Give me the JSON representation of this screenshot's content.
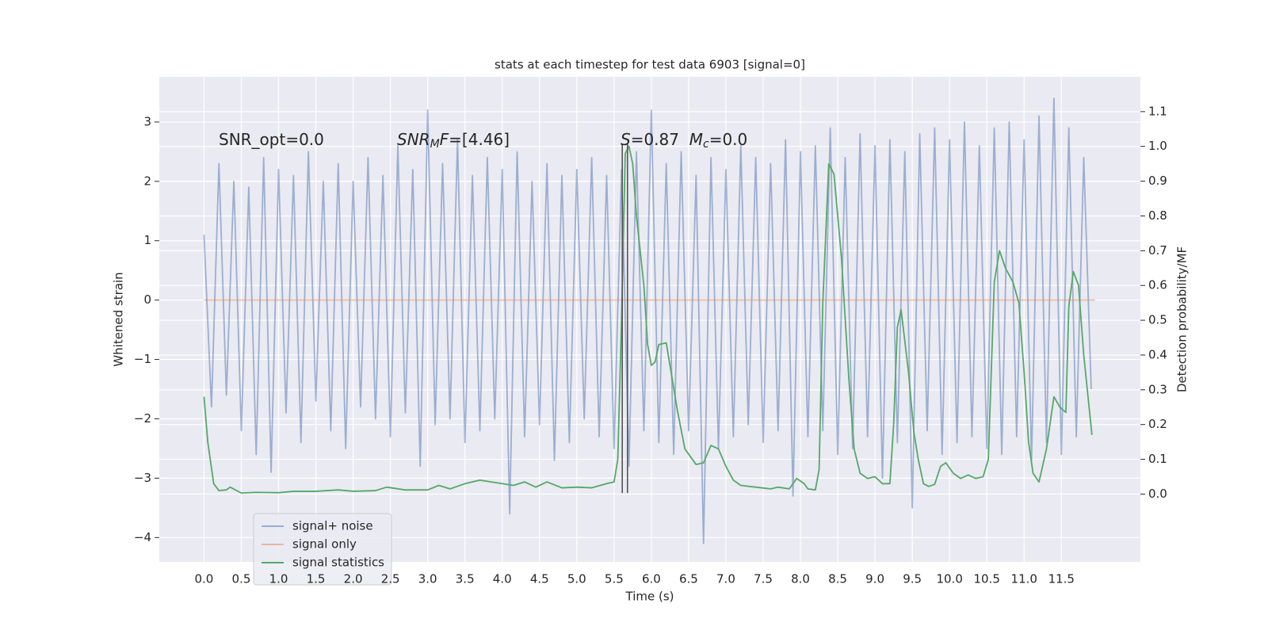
{
  "chart_data": {
    "type": "line",
    "title": "stats at each timestep for test data 6903 [signal=0]",
    "xlabel": "Time (s)",
    "ylabel": "Whitened strain",
    "y2label": "Detection probability/MF",
    "annotations": [
      [
        "SNR_opt=0.0"
      ],
      [
        "SNR",
        "M",
        "F",
        "=[4.46]"
      ],
      [
        "S",
        "=0.87  ",
        "M",
        "c",
        "=0.0"
      ]
    ],
    "xlim": [
      -0.6,
      12.56
    ],
    "ylim": [
      -4.41,
      3.76
    ],
    "y2lim": [
      -0.195,
      1.2
    ],
    "xticks": [
      {
        "value": 0,
        "label": "0.0"
      },
      0.5,
      {
        "value": 1,
        "label": "1.0"
      },
      1.5,
      {
        "value": 2,
        "label": "2.0"
      },
      2.5,
      {
        "value": 3,
        "label": "3.0"
      },
      3.5,
      {
        "value": 4,
        "label": "4.0"
      },
      4.5,
      {
        "value": 5,
        "label": "5.0"
      },
      5.5,
      {
        "value": 6,
        "label": "6.0"
      },
      6.5,
      {
        "value": 7,
        "label": "7.0"
      },
      7.5,
      {
        "value": 8,
        "label": "8.0"
      },
      8.5,
      {
        "value": 9,
        "label": "9.0"
      },
      9.5,
      {
        "value": 10,
        "label": "10.0"
      },
      10.5,
      {
        "value": 11,
        "label": "11.0"
      },
      11.5
    ],
    "yticks": [
      {
        "value": -4,
        "label": "−4"
      },
      {
        "value": -3,
        "label": "−3"
      },
      {
        "value": -2,
        "label": "−2"
      },
      {
        "value": -1,
        "label": "−1"
      },
      0,
      1,
      2,
      3
    ],
    "y2ticks": [
      {
        "value": 0,
        "label": "0.0"
      },
      0.1,
      0.2,
      0.3,
      0.4,
      0.5,
      0.6,
      0.7,
      0.8,
      0.9,
      {
        "value": 1,
        "label": "1.0"
      },
      1.1
    ],
    "grid": true,
    "legend": "lower left",
    "vlines": [
      {
        "x": 5.61,
        "range": [
          -3.25,
          2.63
        ]
      },
      {
        "x": 5.68,
        "range": [
          -3.25,
          2.63
        ]
      }
    ],
    "vline_color": "#555555",
    "series": [
      {
        "name": "signal+ noise",
        "color": "#4c72b0",
        "alpha": 0.5,
        "x": [
          0.0,
          0.1,
          0.2,
          0.3,
          0.4,
          0.5,
          0.6,
          0.7,
          0.8,
          0.9,
          1.0,
          1.1,
          1.2,
          1.3,
          1.4,
          1.5,
          1.6,
          1.7,
          1.8,
          1.9,
          2.0,
          2.1,
          2.2,
          2.3,
          2.4,
          2.5,
          2.6,
          2.7,
          2.8,
          2.9,
          3.0,
          3.1,
          3.2,
          3.3,
          3.4,
          3.5,
          3.6,
          3.7,
          3.8,
          3.9,
          4.0,
          4.1,
          4.2,
          4.3,
          4.4,
          4.5,
          4.6,
          4.7,
          4.8,
          4.9,
          5.0,
          5.1,
          5.2,
          5.3,
          5.4,
          5.5,
          5.6,
          5.7,
          5.8,
          5.9,
          6.0,
          6.1,
          6.2,
          6.3,
          6.4,
          6.5,
          6.6,
          6.7,
          6.8,
          6.9,
          7.0,
          7.1,
          7.2,
          7.3,
          7.4,
          7.5,
          7.6,
          7.7,
          7.8,
          7.9,
          8.0,
          8.1,
          8.2,
          8.3,
          8.4,
          8.5,
          8.6,
          8.7,
          8.8,
          8.9,
          9.0,
          9.1,
          9.2,
          9.3,
          9.4,
          9.5,
          9.6,
          9.7,
          9.8,
          9.9,
          10.0,
          10.1,
          10.2,
          10.3,
          10.4,
          10.5,
          10.6,
          10.7,
          10.8,
          10.9,
          11.0,
          11.1,
          11.2,
          11.3,
          11.4,
          11.5,
          11.6,
          11.7,
          11.8,
          11.9
        ],
        "values": [
          1.1,
          -1.8,
          2.3,
          -1.6,
          2.0,
          -2.2,
          1.9,
          -2.6,
          2.4,
          -2.9,
          2.2,
          -1.9,
          2.1,
          -2.4,
          2.5,
          -1.7,
          2.0,
          -2.2,
          2.3,
          -2.5,
          2.0,
          -1.8,
          2.4,
          -2.0,
          2.1,
          -2.3,
          2.6,
          -1.9,
          2.2,
          -2.8,
          3.2,
          -2.1,
          2.3,
          -2.0,
          2.7,
          -2.4,
          2.1,
          -2.2,
          2.4,
          -2.0,
          2.2,
          -3.6,
          2.5,
          -2.3,
          2.0,
          -2.1,
          2.3,
          -2.7,
          2.1,
          -2.4,
          2.2,
          -2.0,
          2.4,
          -2.3,
          2.1,
          -2.5,
          2.2,
          -2.8,
          2.5,
          -2.2,
          3.2,
          -2.4,
          2.3,
          -2.6,
          2.5,
          -2.2,
          2.1,
          -4.1,
          2.4,
          -2.5,
          2.2,
          -2.3,
          2.6,
          -2.1,
          2.4,
          -2.4,
          2.3,
          -2.2,
          2.7,
          -3.3,
          2.5,
          -2.3,
          2.6,
          -2.2,
          2.9,
          -2.6,
          2.4,
          -2.5,
          2.8,
          -2.3,
          2.6,
          -3.0,
          2.7,
          -2.4,
          2.5,
          -3.5,
          2.8,
          -2.2,
          2.9,
          -2.6,
          2.7,
          -2.4,
          3.0,
          -2.3,
          2.6,
          -2.5,
          2.9,
          -2.6,
          3.0,
          -2.3,
          2.7,
          -2.7,
          3.1,
          -2.4,
          3.4,
          -2.6,
          2.9,
          -2.3,
          2.4,
          -1.5
        ]
      },
      {
        "name": "signal only",
        "color": "#dd8452",
        "alpha": 0.5,
        "x": [
          0.0,
          11.95
        ],
        "values": [
          0,
          0
        ]
      },
      {
        "name": "signal statistics",
        "color": "#55a868",
        "alpha": 1,
        "axis": "y2",
        "x": [
          0,
          0.05,
          0.13,
          0.2,
          0.3,
          0.35,
          0.5,
          0.7,
          1.0,
          1.2,
          1.5,
          1.8,
          2.0,
          2.3,
          2.45,
          2.7,
          3.0,
          3.15,
          3.3,
          3.5,
          3.7,
          4.0,
          4.15,
          4.3,
          4.45,
          4.6,
          4.8,
          5.0,
          5.2,
          5.4,
          5.5,
          5.55,
          5.6,
          5.65,
          5.7,
          5.75,
          5.8,
          5.9,
          5.95,
          6.0,
          6.05,
          6.1,
          6.2,
          6.25,
          6.35,
          6.45,
          6.55,
          6.6,
          6.7,
          6.8,
          6.9,
          7.0,
          7.1,
          7.2,
          7.4,
          7.6,
          7.7,
          7.85,
          7.95,
          8.05,
          8.1,
          8.2,
          8.25,
          8.3,
          8.38,
          8.45,
          8.55,
          8.65,
          8.72,
          8.8,
          8.9,
          9.0,
          9.1,
          9.2,
          9.25,
          9.3,
          9.35,
          9.45,
          9.52,
          9.58,
          9.65,
          9.72,
          9.8,
          9.88,
          9.95,
          10.05,
          10.15,
          10.25,
          10.35,
          10.45,
          10.52,
          10.6,
          10.67,
          10.75,
          10.85,
          10.93,
          11.0,
          11.06,
          11.12,
          11.2,
          11.3,
          11.4,
          11.48,
          11.56,
          11.6,
          11.66,
          11.73,
          11.8,
          11.91
        ],
        "values": [
          0.28,
          0.15,
          0.03,
          0.01,
          0.012,
          0.02,
          0.003,
          0.005,
          0.004,
          0.008,
          0.008,
          0.012,
          0.008,
          0.01,
          0.02,
          0.012,
          0.012,
          0.025,
          0.015,
          0.03,
          0.04,
          0.03,
          0.025,
          0.035,
          0.02,
          0.035,
          0.018,
          0.02,
          0.018,
          0.03,
          0.035,
          0.1,
          0.5,
          0.98,
          1.0,
          0.95,
          0.8,
          0.6,
          0.43,
          0.37,
          0.38,
          0.43,
          0.435,
          0.37,
          0.24,
          0.13,
          0.1,
          0.085,
          0.09,
          0.14,
          0.13,
          0.08,
          0.04,
          0.025,
          0.02,
          0.015,
          0.02,
          0.015,
          0.045,
          0.03,
          0.015,
          0.012,
          0.07,
          0.55,
          0.95,
          0.92,
          0.68,
          0.33,
          0.13,
          0.06,
          0.045,
          0.05,
          0.03,
          0.03,
          0.2,
          0.48,
          0.53,
          0.35,
          0.18,
          0.1,
          0.03,
          0.022,
          0.028,
          0.08,
          0.09,
          0.06,
          0.045,
          0.055,
          0.045,
          0.05,
          0.1,
          0.61,
          0.7,
          0.65,
          0.61,
          0.55,
          0.35,
          0.15,
          0.06,
          0.035,
          0.13,
          0.28,
          0.25,
          0.235,
          0.54,
          0.64,
          0.6,
          0.4,
          0.17
        ]
      }
    ]
  }
}
